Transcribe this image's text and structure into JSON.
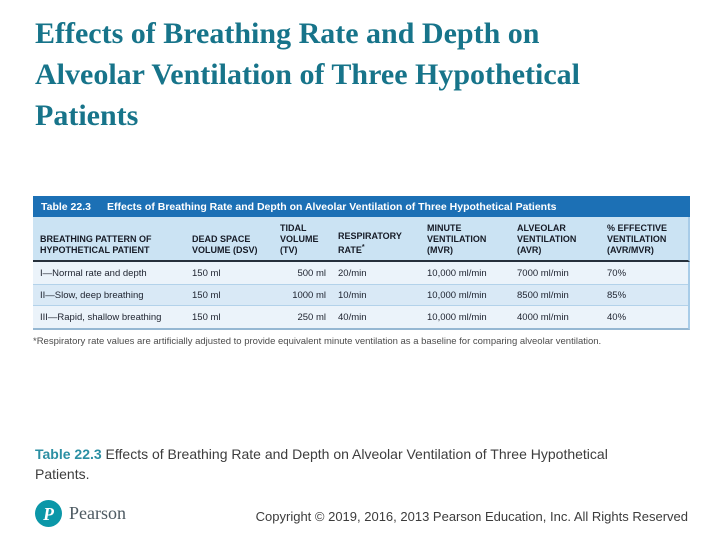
{
  "title": "Effects of Breathing Rate and Depth on\nAlveolar Ventilation of Three Hypothetical\nPatients",
  "table": {
    "header_bar": {
      "label": "Table 22.3",
      "title": "Effects of Breathing Rate and Depth on Alveolar Ventilation of Three Hypothetical Patients"
    },
    "columns": [
      {
        "id": "pattern",
        "lines": [
          "BREATHING PATTERN OF",
          "HYPOTHETICAL PATIENT"
        ]
      },
      {
        "id": "dsv",
        "lines": [
          "DEAD SPACE",
          "VOLUME (DSV)"
        ]
      },
      {
        "id": "tv",
        "lines": [
          "TIDAL",
          "VOLUME",
          "(TV)"
        ]
      },
      {
        "id": "rate",
        "lines": [
          "RESPIRATORY",
          "RATE*"
        ]
      },
      {
        "id": "mvr",
        "lines": [
          "MINUTE",
          "VENTILATION",
          "(MVR)"
        ]
      },
      {
        "id": "avr",
        "lines": [
          "ALVEOLAR",
          "VENTILATION",
          "(AVR)"
        ]
      },
      {
        "id": "effective",
        "lines": [
          "% EFFECTIVE",
          "VENTILATION",
          "(AVR/MVR)"
        ]
      }
    ],
    "rows": [
      [
        "I—Normal rate and depth",
        "150 ml",
        "500 ml",
        "20/min",
        "10,000 ml/min",
        "7000 ml/min",
        "70%"
      ],
      [
        "II—Slow, deep breathing",
        "150 ml",
        "1000 ml",
        "10/min",
        "10,000 ml/min",
        "8500 ml/min",
        "85%"
      ],
      [
        "III—Rapid, shallow breathing",
        "150 ml",
        "250 ml",
        "40/min",
        "10,000 ml/min",
        "4000 ml/min",
        "40%"
      ]
    ],
    "footnote": "*Respiratory rate values are artificially adjusted to provide equivalent minute ventilation as a baseline for comparing alveolar ventilation."
  },
  "caption": {
    "label": "Table 22.3",
    "text": " Effects of Breathing Rate and Depth on Alveolar Ventilation of Three Hypothetical Patients."
  },
  "footer": {
    "brand": "Pearson",
    "logo_icon": "pearson-interrobang-icon",
    "copyright": "Copyright © 2019, 2016, 2013 Pearson Education, Inc. All Rights Reserved"
  },
  "colors": {
    "title_teal": "#17748a",
    "caption_teal": "#2b8fa3",
    "bar_blue": "#1c70b5",
    "header_light_blue": "#cbe3f3",
    "row_light": "#ebf3fa",
    "row_blue": "#d9e9f6",
    "logo_teal": "#0b97a8"
  },
  "chart_data": {
    "type": "table",
    "title": "Table 22.3  Effects of Breathing Rate and Depth on Alveolar Ventilation of Three Hypothetical Patients",
    "columns": [
      "BREATHING PATTERN OF HYPOTHETICAL PATIENT",
      "DEAD SPACE VOLUME (DSV)",
      "TIDAL VOLUME (TV)",
      "RESPIRATORY RATE*",
      "MINUTE VENTILATION (MVR)",
      "ALVEOLAR VENTILATION (AVR)",
      "% EFFECTIVE VENTILATION (AVR/MVR)"
    ],
    "rows": [
      [
        "I—Normal rate and depth",
        "150 ml",
        "500 ml",
        "20/min",
        "10,000 ml/min",
        "7000 ml/min",
        "70%"
      ],
      [
        "II—Slow, deep breathing",
        "150 ml",
        "1000 ml",
        "10/min",
        "10,000 ml/min",
        "8500 ml/min",
        "85%"
      ],
      [
        "III—Rapid, shallow breathing",
        "150 ml",
        "250 ml",
        "40/min",
        "10,000 ml/min",
        "4000 ml/min",
        "40%"
      ]
    ]
  }
}
